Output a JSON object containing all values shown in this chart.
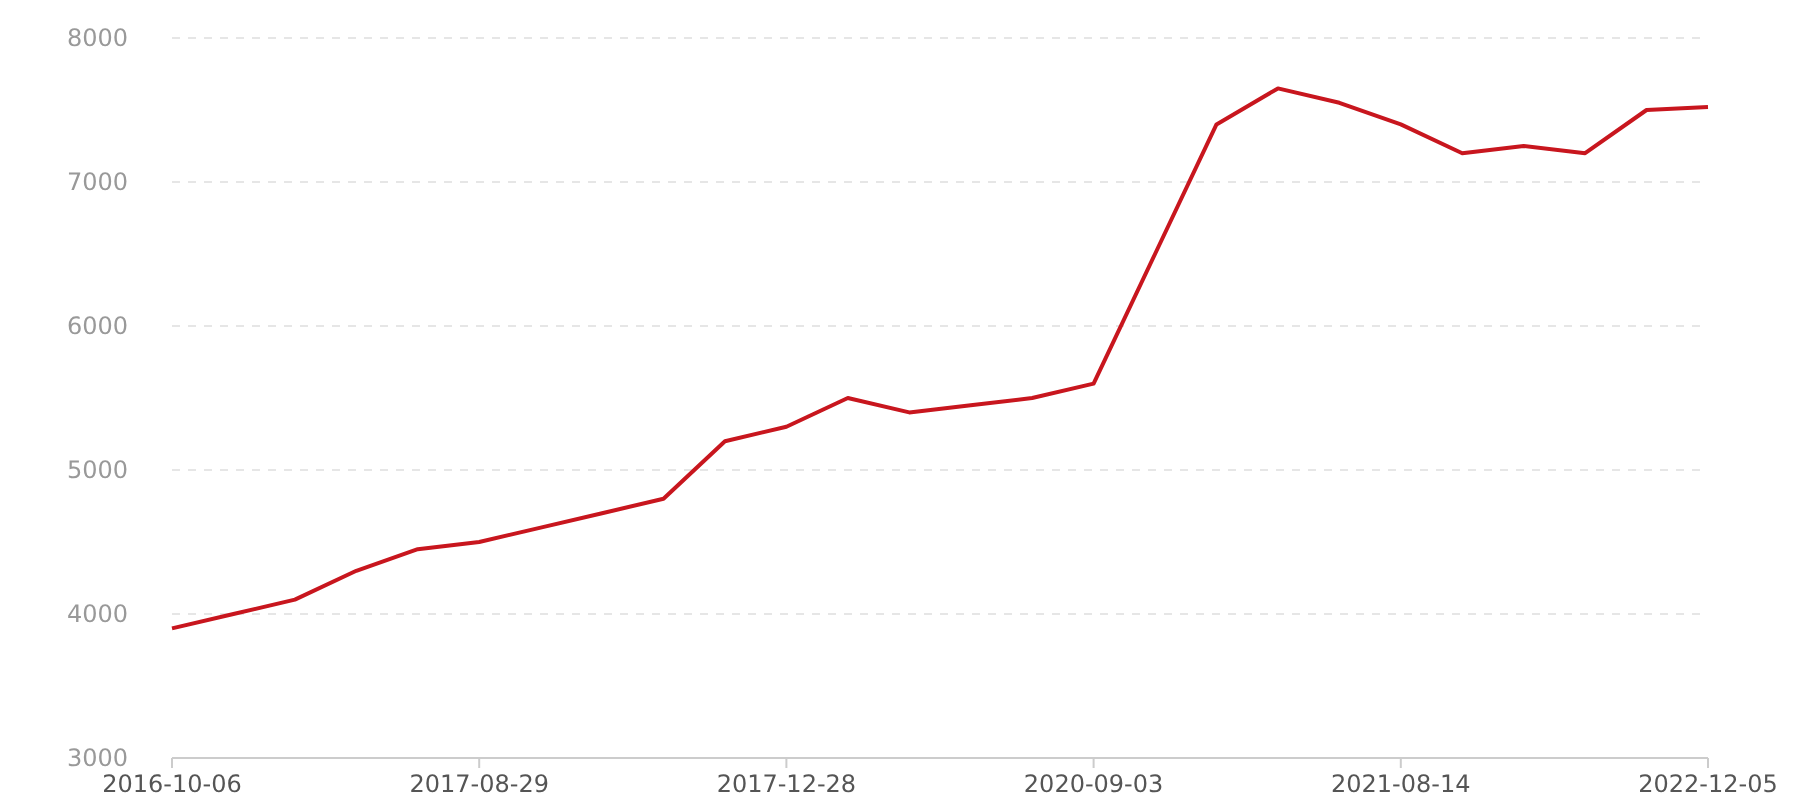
{
  "chart_data": {
    "type": "line",
    "categories": [
      "2016-10-06",
      null,
      null,
      null,
      null,
      "2017-08-29",
      null,
      null,
      null,
      null,
      "2017-12-28",
      null,
      null,
      null,
      null,
      "2020-09-03",
      null,
      null,
      null,
      null,
      "2021-08-14",
      null,
      null,
      null,
      null,
      "2022-12-05"
    ],
    "series": [
      {
        "color": "#c8161e",
        "values": [
          3900,
          4000,
          4100,
          4300,
          4450,
          4500,
          4600,
          4700,
          4800,
          5200,
          5300,
          5500,
          5400,
          5450,
          5500,
          5600,
          6500,
          7400,
          7650,
          7550,
          7400,
          7200,
          7250,
          7200,
          7500,
          7520
        ]
      }
    ],
    "ylim": [
      3000,
      8000
    ],
    "yticks": [
      3000,
      4000,
      5000,
      6000,
      7000,
      8000
    ],
    "grid": "y",
    "marker": "none",
    "line_style": "solid"
  }
}
